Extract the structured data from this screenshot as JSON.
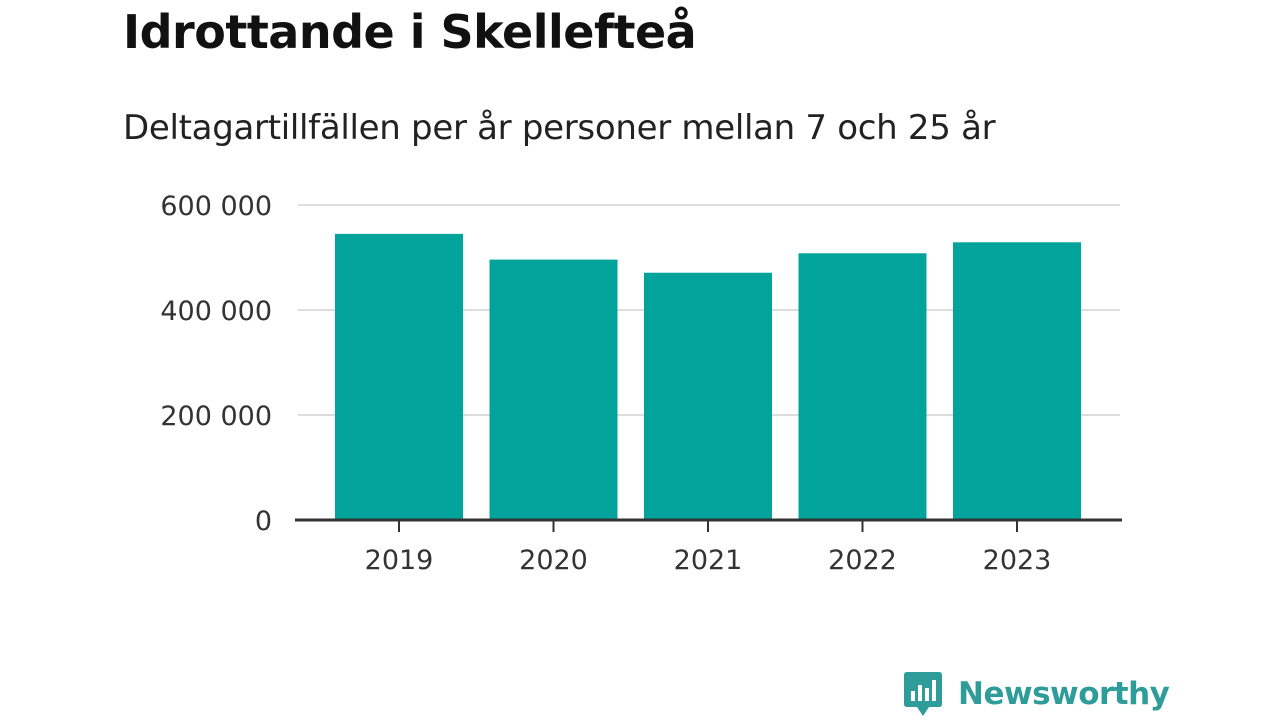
{
  "title": "Idrottande i Skellefteå",
  "subtitle": "Deltagartillfällen per år personer mellan 7 och 25 år",
  "brand": {
    "name": "Newsworthy",
    "logo_icon": "bar-chart-speech-bubble-icon",
    "color": "#2e9c98"
  },
  "chart_data": {
    "type": "bar",
    "title": "Idrottande i Skellefteå",
    "subtitle": "Deltagartillfällen per år personer mellan 7 och 25 år",
    "categories": [
      "2019",
      "2020",
      "2021",
      "2022",
      "2023"
    ],
    "values": [
      545000,
      496000,
      471000,
      508000,
      529000
    ],
    "ylim": [
      0,
      600000
    ],
    "yticks": [
      0,
      200000,
      400000,
      600000
    ],
    "ytick_labels": [
      "0",
      "200 000",
      "400 000",
      "600 000"
    ],
    "xlabel": "",
    "ylabel": "",
    "grid": true,
    "legend": "none",
    "bar_color": "#02a39a",
    "grid_color": "#dddddd",
    "axis_color": "#333333"
  }
}
